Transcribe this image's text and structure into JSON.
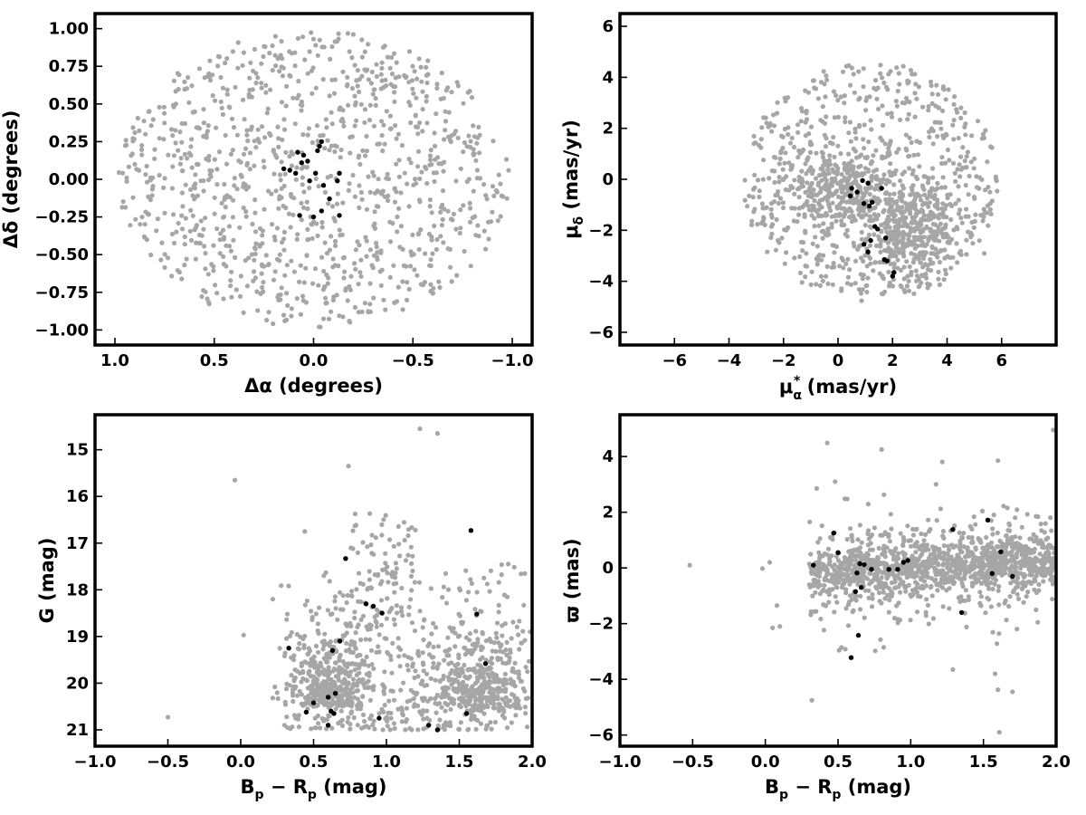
{
  "colors": {
    "field": "#a6a6a6",
    "members": "#000000",
    "axes": "#000000"
  },
  "chart_data": [
    {
      "type": "scatter",
      "xlabel": "Δα (degrees)",
      "ylabel": "Δδ (degrees)",
      "xlim": [
        1.1,
        -1.1
      ],
      "ylim": [
        -1.1,
        1.1
      ],
      "x_reversed": true,
      "xticks": [
        1.0,
        0.5,
        0.0,
        -0.5,
        -1.0
      ],
      "xtick_labels": [
        "1.0",
        "0.5",
        "0.0",
        "−0.5",
        "−1.0"
      ],
      "yticks": [
        1.0,
        0.75,
        0.5,
        0.25,
        0.0,
        -0.25,
        -0.5,
        -0.75,
        -1.0
      ],
      "ytick_labels": [
        "1.00",
        "0.75",
        "0.50",
        "0.25",
        "0.00",
        "−0.25",
        "−0.50",
        "−0.75",
        "−1.00"
      ],
      "grid": false,
      "field_distribution": "uniform disk of radius 1.0 deg, ~1000 stars (grey)",
      "series": [
        {
          "role": "field",
          "color": "#a6a6a6",
          "points": []
        },
        {
          "role": "members",
          "color": "#000000",
          "points": [
            [
              0.08,
              0.18
            ],
            [
              0.05,
              0.16
            ],
            [
              0.03,
              0.12
            ],
            [
              -0.03,
              0.22
            ],
            [
              -0.04,
              0.25
            ],
            [
              -0.01,
              0.04
            ],
            [
              0.15,
              0.07
            ],
            [
              0.12,
              0.06
            ],
            [
              0.09,
              0.04
            ],
            [
              0.02,
              -0.01
            ],
            [
              -0.05,
              -0.04
            ],
            [
              -0.08,
              -0.13
            ],
            [
              -0.13,
              0.04
            ],
            [
              -0.12,
              -0.01
            ],
            [
              -0.04,
              -0.21
            ],
            [
              0.07,
              -0.24
            ],
            [
              0.0,
              -0.25
            ],
            [
              -0.13,
              -0.24
            ],
            [
              0.06,
              0.11
            ],
            [
              -0.02,
              0.19
            ]
          ]
        }
      ]
    },
    {
      "type": "scatter",
      "xlabel_main": "μ",
      "xlabel_sub": "α",
      "xlabel_sup": "*",
      "xlabel_rest": "  (mas/yr)",
      "ylabel_main": "μ",
      "ylabel_sub": "δ",
      "ylabel_rest": " (mas/yr)",
      "xlim": [
        -8,
        8
      ],
      "ylim": [
        -6.5,
        6.5
      ],
      "xticks": [
        -6,
        -4,
        -2,
        0,
        2,
        4,
        6
      ],
      "xtick_labels": [
        "−6",
        "−4",
        "−2",
        "0",
        "2",
        "4",
        "6"
      ],
      "yticks": [
        -6,
        -4,
        -2,
        0,
        2,
        4,
        6
      ],
      "ytick_labels": [
        "−6",
        "−4",
        "−2",
        "0",
        "2",
        "4",
        "6"
      ],
      "grid": false,
      "field_distribution": "disk centred near (1.2, -0.1) radius ~4.8 mas/yr, denser clumps near (0,0) and (2.5,-2), ~1000 stars (grey)",
      "series": [
        {
          "role": "field",
          "color": "#a6a6a6",
          "points": []
        },
        {
          "role": "members",
          "color": "#000000",
          "points": [
            [
              0.9,
              -0.05
            ],
            [
              1.1,
              -0.15
            ],
            [
              0.5,
              -0.35
            ],
            [
              0.7,
              -0.5
            ],
            [
              0.45,
              -0.65
            ],
            [
              1.6,
              -0.35
            ],
            [
              0.95,
              -0.95
            ],
            [
              1.15,
              -1.05
            ],
            [
              1.25,
              -0.9
            ],
            [
              1.35,
              -1.85
            ],
            [
              1.45,
              -1.95
            ],
            [
              1.75,
              -2.3
            ],
            [
              0.95,
              -2.55
            ],
            [
              1.2,
              -2.4
            ],
            [
              1.1,
              -2.85
            ],
            [
              1.7,
              -3.15
            ],
            [
              1.8,
              -3.2
            ],
            [
              2.05,
              -3.65
            ],
            [
              2.0,
              -3.8
            ]
          ]
        }
      ]
    },
    {
      "type": "scatter",
      "xlabel_parts": [
        "B",
        "p",
        " − R",
        "p",
        " (mag)"
      ],
      "ylabel": "G (mag)",
      "xlim": [
        -1.0,
        2.0
      ],
      "ylim": [
        21.35,
        14.25
      ],
      "y_reversed": true,
      "xticks": [
        -1.0,
        -0.5,
        0.0,
        0.5,
        1.0,
        1.5,
        2.0
      ],
      "xtick_labels": [
        "−1.0",
        "−0.5",
        "0.0",
        "0.5",
        "1.0",
        "1.5",
        "2.0"
      ],
      "yticks": [
        21,
        20,
        19,
        18,
        17,
        16,
        15
      ],
      "ytick_labels": [
        "21",
        "20",
        "19",
        "18",
        "17",
        "16",
        "15"
      ],
      "grid": false,
      "field_distribution": "field stars with colour 0.2-2.0 mag, mostly G 18-21, concentrations near colour 0.65 and 1.65",
      "series": [
        {
          "role": "field",
          "color": "#a6a6a6",
          "points": []
        },
        {
          "role": "members",
          "color": "#000000",
          "points": [
            [
              0.33,
              19.25
            ],
            [
              0.45,
              20.62
            ],
            [
              0.5,
              20.42
            ],
            [
              0.6,
              20.9
            ],
            [
              0.6,
              20.3
            ],
            [
              0.62,
              20.6
            ],
            [
              0.64,
              20.65
            ],
            [
              0.65,
              20.22
            ],
            [
              0.63,
              19.3
            ],
            [
              0.68,
              19.1
            ],
            [
              0.72,
              17.33
            ],
            [
              0.86,
              18.3
            ],
            [
              0.91,
              18.35
            ],
            [
              0.95,
              20.75
            ],
            [
              0.97,
              18.5
            ],
            [
              1.29,
              20.9
            ],
            [
              1.35,
              21.0
            ],
            [
              1.55,
              20.65
            ],
            [
              1.58,
              16.73
            ],
            [
              1.62,
              18.52
            ],
            [
              1.68,
              19.58
            ]
          ]
        }
      ]
    },
    {
      "type": "scatter",
      "xlabel_parts": [
        "B",
        "p",
        " − R",
        "p",
        " (mag)"
      ],
      "ylabel": "ϖ (mas)",
      "xlim": [
        -1.0,
        2.0
      ],
      "ylim": [
        -6.4,
        5.5
      ],
      "xticks": [
        -1.0,
        -0.5,
        0.0,
        0.5,
        1.0,
        1.5,
        2.0
      ],
      "xtick_labels": [
        "−1.0",
        "−0.5",
        "0.0",
        "0.5",
        "1.0",
        "1.5",
        "2.0"
      ],
      "yticks": [
        -6,
        -4,
        -2,
        0,
        2,
        4
      ],
      "ytick_labels": [
        "−6",
        "−4",
        "−2",
        "0",
        "2",
        "4"
      ],
      "grid": false,
      "field_distribution": "band around parallax 0 for colour 0.3-2.0, scatter increasing at low values, ~1000 stars (grey)",
      "series": [
        {
          "role": "field",
          "color": "#a6a6a6",
          "points": []
        },
        {
          "role": "members",
          "color": "#000000",
          "points": [
            [
              0.33,
              0.1
            ],
            [
              0.47,
              1.25
            ],
            [
              0.5,
              0.55
            ],
            [
              0.59,
              -3.22
            ],
            [
              0.62,
              -0.85
            ],
            [
              0.63,
              -0.18
            ],
            [
              0.64,
              -2.42
            ],
            [
              0.65,
              0.15
            ],
            [
              0.66,
              -0.7
            ],
            [
              0.68,
              0.12
            ],
            [
              0.73,
              -0.05
            ],
            [
              0.85,
              -0.05
            ],
            [
              0.91,
              -0.05
            ],
            [
              0.95,
              0.2
            ],
            [
              0.98,
              0.27
            ],
            [
              1.29,
              1.38
            ],
            [
              1.35,
              -1.6
            ],
            [
              1.53,
              1.72
            ],
            [
              1.56,
              -0.2
            ],
            [
              1.62,
              0.58
            ],
            [
              1.7,
              -0.3
            ]
          ]
        }
      ]
    }
  ]
}
